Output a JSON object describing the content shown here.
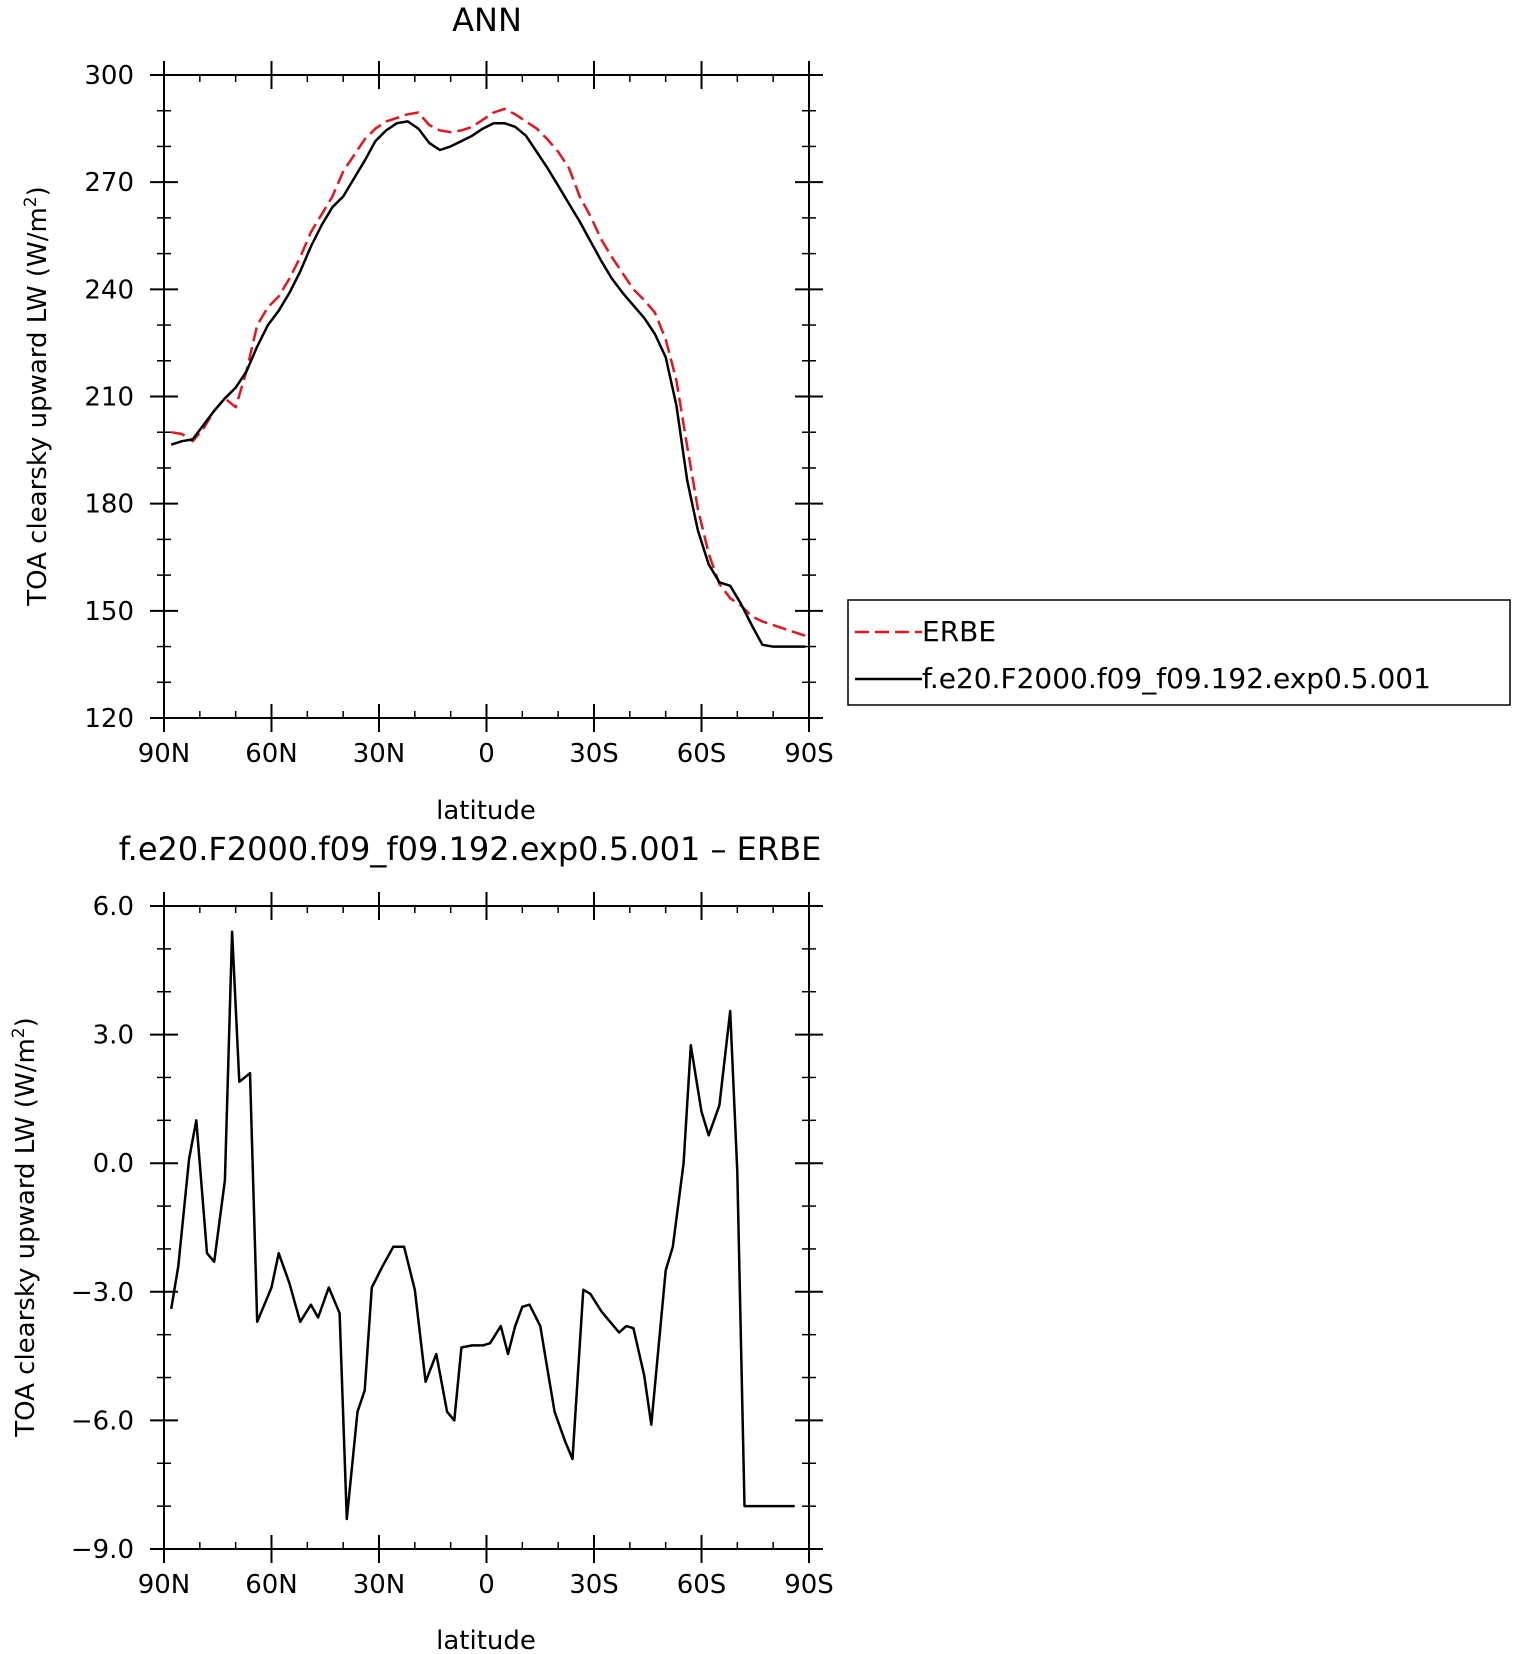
{
  "chart_data": [
    {
      "type": "line",
      "title": "ANN",
      "xlabel": "latitude",
      "ylabel": "TOA clearsky upward LW (W/m",
      "ylabel_sup": "2",
      "ylabel_close": ")",
      "xlim": [
        90,
        -90
      ],
      "ylim": [
        120,
        300
      ],
      "x_ticks": [
        90,
        60,
        30,
        0,
        -30,
        -60,
        -90
      ],
      "x_tick_labels": [
        "90N",
        "60N",
        "30N",
        "0",
        "30S",
        "60S",
        "90S"
      ],
      "y_ticks": [
        120,
        150,
        180,
        210,
        240,
        270,
        300
      ],
      "y_tick_labels": [
        "120",
        "150",
        "180",
        "210",
        "240",
        "270",
        "300"
      ],
      "legend": {
        "placement": "right",
        "entries": [
          "ERBE",
          "f.e20.F2000.f09_f09.192.exp0.5.001"
        ]
      },
      "series": [
        {
          "name": "ERBE",
          "color": "#e8141c",
          "dash": "dashed",
          "x": [
            88,
            85,
            82,
            79,
            76,
            73,
            70,
            67,
            64,
            61,
            58,
            55,
            52,
            49,
            46,
            43,
            40,
            37,
            34,
            31,
            28,
            25,
            22,
            19,
            16,
            13,
            10,
            7,
            4,
            1,
            -2,
            -5,
            -8,
            -11,
            -14,
            -17,
            -20,
            -23,
            -26,
            -29,
            -32,
            -35,
            -38,
            -41,
            -44,
            -47,
            -50,
            -53,
            -56,
            -59,
            -62,
            -65,
            -68,
            -71,
            -74,
            -77,
            -80,
            -83,
            -86,
            -89
          ],
          "y": [
            200,
            199.5,
            197.5,
            201,
            206,
            209.5,
            207,
            217,
            230,
            235,
            238,
            243,
            249,
            256,
            261,
            266,
            273,
            277.5,
            282,
            285,
            287,
            288,
            289,
            289.5,
            286,
            284.5,
            284,
            284.5,
            285.5,
            287.5,
            289.5,
            290.5,
            289,
            287,
            285,
            282,
            278.5,
            274,
            266,
            260.5,
            254,
            249,
            244.5,
            240,
            237,
            233.5,
            226,
            214.5,
            196,
            178.5,
            166,
            157.5,
            153.5,
            151.5,
            148.5,
            147,
            146,
            145,
            144,
            143
          ]
        },
        {
          "name": "f.e20.F2000.f09_f09.192.exp0.5.001",
          "color": "#000000",
          "dash": "solid",
          "x": [
            88,
            85,
            82,
            79,
            76,
            73,
            70,
            67,
            64,
            61,
            58,
            55,
            52,
            49,
            46,
            43,
            40,
            37,
            34,
            31,
            28,
            25,
            22,
            19,
            16,
            13,
            10,
            7,
            4,
            1,
            -2,
            -5,
            -8,
            -11,
            -14,
            -17,
            -20,
            -23,
            -26,
            -29,
            -32,
            -35,
            -38,
            -41,
            -44,
            -47,
            -50,
            -53,
            -56,
            -59,
            -62,
            -65,
            -68,
            -71,
            -74,
            -77,
            -80,
            -83,
            -86,
            -89
          ],
          "y": [
            196.5,
            197.5,
            198,
            202,
            206,
            209.5,
            212.5,
            217,
            224,
            230,
            234,
            239,
            245,
            252,
            258,
            263,
            266,
            271,
            276,
            281.5,
            284.5,
            286.5,
            287,
            285,
            281,
            279,
            280,
            281.5,
            283,
            285,
            286.5,
            286.5,
            285.5,
            283,
            278.5,
            274,
            269,
            264,
            259,
            253.5,
            248,
            243,
            239,
            235.5,
            232,
            227.5,
            221,
            207.5,
            186.5,
            172.5,
            163,
            158,
            157,
            152,
            146,
            140.5,
            140,
            140,
            140,
            140
          ]
        }
      ]
    },
    {
      "type": "line",
      "title": "f.e20.F2000.f09_f09.192.exp0.5.001 – ERBE",
      "xlabel": "latitude",
      "ylabel": "TOA clearsky upward LW (W/m",
      "ylabel_sup": "2",
      "ylabel_close": ")",
      "xlim": [
        90,
        -90
      ],
      "ylim": [
        -9,
        6
      ],
      "x_ticks": [
        90,
        60,
        30,
        0,
        -30,
        -60,
        -90
      ],
      "x_tick_labels": [
        "90N",
        "60N",
        "30N",
        "0",
        "30S",
        "60S",
        "90S"
      ],
      "y_ticks": [
        -9,
        -6,
        -3,
        0,
        3,
        6
      ],
      "y_tick_labels": [
        "−9.0",
        "−6.0",
        "−3.0",
        "0.0",
        "3.0",
        "6.0"
      ],
      "series": [
        {
          "color": "#000000",
          "dash": "solid",
          "x": [
            88,
            86,
            83,
            81,
            78,
            76,
            73,
            71,
            69,
            66,
            64,
            60,
            58,
            55,
            52,
            49,
            47,
            44,
            41,
            39,
            36,
            34,
            32,
            29,
            26,
            23,
            20,
            17,
            14,
            11,
            9,
            7,
            4,
            1,
            -1,
            -4,
            -6,
            -8,
            -10,
            -12,
            -15,
            -17,
            -19,
            -22,
            -24,
            -27,
            -29,
            -32,
            -34,
            -37,
            -39,
            -41,
            -44,
            -46,
            -50,
            -52,
            -55,
            -57,
            -60,
            -62,
            -65,
            -68,
            -70,
            -72,
            -74,
            -77,
            -79,
            -81,
            -84,
            -86
          ],
          "y": [
            -3.4,
            -2.4,
            0.1,
            1.0,
            -2.1,
            -2.3,
            -0.4,
            5.4,
            1.9,
            2.1,
            -3.7,
            -2.9,
            -2.1,
            -2.8,
            -3.7,
            -3.3,
            -3.6,
            -2.9,
            -3.5,
            -8.3,
            -5.8,
            -5.3,
            -2.9,
            -2.4,
            -1.95,
            -1.95,
            -2.95,
            -5.1,
            -4.45,
            -5.8,
            -6.0,
            -4.3,
            -4.25,
            -4.25,
            -4.2,
            -3.8,
            -4.45,
            -3.8,
            -3.35,
            -3.3,
            -3.8,
            -4.8,
            -5.8,
            -6.5,
            -6.9,
            -2.95,
            -3.05,
            -3.45,
            -3.65,
            -3.95,
            -3.8,
            -3.85,
            -4.95,
            -6.1,
            -2.5,
            -1.95,
            0.0,
            2.75,
            1.2,
            0.65,
            1.35,
            3.55,
            -0.2,
            -8.0,
            -8.0,
            -8.0,
            -8.0,
            -8.0,
            -8.0,
            -8.0
          ]
        }
      ]
    }
  ]
}
